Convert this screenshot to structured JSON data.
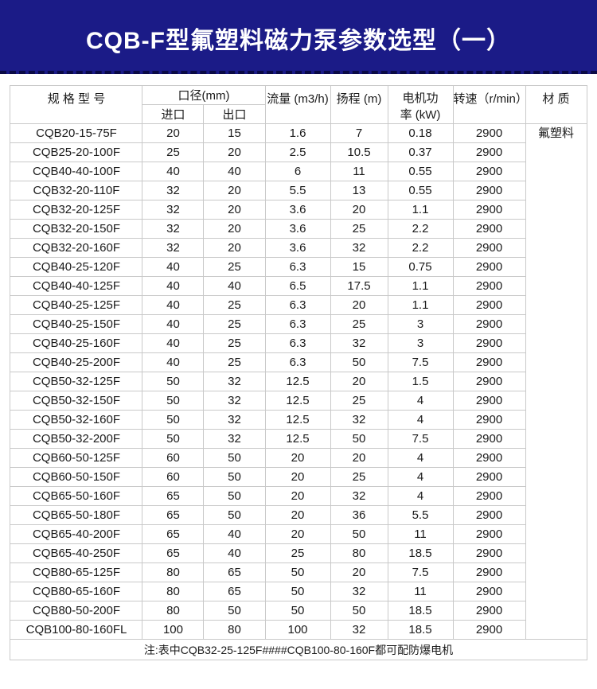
{
  "banner": {
    "title": "CQB-F型氟塑料磁力泵参数选型（一）",
    "background_color": "#1b1b87",
    "text_color": "#ffffff"
  },
  "table": {
    "headers": {
      "model": "规 格 型 号",
      "diameter_group": "口径(mm)",
      "inlet": "进口",
      "outlet": "出口",
      "flow": "流量 (m3/h)",
      "head": "扬程 (m)",
      "power": "电机功\n率 (kW)",
      "speed": "转速（r/min）",
      "material": "材 质"
    },
    "material_value": "氟塑料",
    "rows": [
      [
        "CQB20-15-75F",
        "20",
        "15",
        "1.6",
        "7",
        "0.18",
        "2900"
      ],
      [
        "CQB25-20-100F",
        "25",
        "20",
        "2.5",
        "10.5",
        "0.37",
        "2900"
      ],
      [
        "CQB40-40-100F",
        "40",
        "40",
        "6",
        "11",
        "0.55",
        "2900"
      ],
      [
        "CQB32-20-110F",
        "32",
        "20",
        "5.5",
        "13",
        "0.55",
        "2900"
      ],
      [
        "CQB32-20-125F",
        "32",
        "20",
        "3.6",
        "20",
        "1.1",
        "2900"
      ],
      [
        "CQB32-20-150F",
        "32",
        "20",
        "3.6",
        "25",
        "2.2",
        "2900"
      ],
      [
        "CQB32-20-160F",
        "32",
        "20",
        "3.6",
        "32",
        "2.2",
        "2900"
      ],
      [
        "CQB40-25-120F",
        "40",
        "25",
        "6.3",
        "15",
        "0.75",
        "2900"
      ],
      [
        "CQB40-40-125F",
        "40",
        "40",
        "6.5",
        "17.5",
        "1.1",
        "2900"
      ],
      [
        "CQB40-25-125F",
        "40",
        "25",
        "6.3",
        "20",
        "1.1",
        "2900"
      ],
      [
        "CQB40-25-150F",
        "40",
        "25",
        "6.3",
        "25",
        "3",
        "2900"
      ],
      [
        "CQB40-25-160F",
        "40",
        "25",
        "6.3",
        "32",
        "3",
        "2900"
      ],
      [
        "CQB40-25-200F",
        "40",
        "25",
        "6.3",
        "50",
        "7.5",
        "2900"
      ],
      [
        "CQB50-32-125F",
        "50",
        "32",
        "12.5",
        "20",
        "1.5",
        "2900"
      ],
      [
        "CQB50-32-150F",
        "50",
        "32",
        "12.5",
        "25",
        "4",
        "2900"
      ],
      [
        "CQB50-32-160F",
        "50",
        "32",
        "12.5",
        "32",
        "4",
        "2900"
      ],
      [
        "CQB50-32-200F",
        "50",
        "32",
        "12.5",
        "50",
        "7.5",
        "2900"
      ],
      [
        "CQB60-50-125F",
        "60",
        "50",
        "20",
        "20",
        "4",
        "2900"
      ],
      [
        "CQB60-50-150F",
        "60",
        "50",
        "20",
        "25",
        "4",
        "2900"
      ],
      [
        "CQB65-50-160F",
        "65",
        "50",
        "20",
        "32",
        "4",
        "2900"
      ],
      [
        "CQB65-50-180F",
        "65",
        "50",
        "20",
        "36",
        "5.5",
        "2900"
      ],
      [
        "CQB65-40-200F",
        "65",
        "40",
        "20",
        "50",
        "11",
        "2900"
      ],
      [
        "CQB65-40-250F",
        "65",
        "40",
        "25",
        "80",
        "18.5",
        "2900"
      ],
      [
        "CQB80-65-125F",
        "80",
        "65",
        "50",
        "20",
        "7.5",
        "2900"
      ],
      [
        "CQB80-65-160F",
        "80",
        "65",
        "50",
        "32",
        "11",
        "2900"
      ],
      [
        "CQB80-50-200F",
        "80",
        "50",
        "50",
        "50",
        "18.5",
        "2900"
      ],
      [
        "CQB100-80-160FL",
        "100",
        "80",
        "100",
        "32",
        "18.5",
        "2900"
      ]
    ],
    "note": "注:表中CQB32-25-125F####CQB100-80-160F都可配防爆电机"
  }
}
